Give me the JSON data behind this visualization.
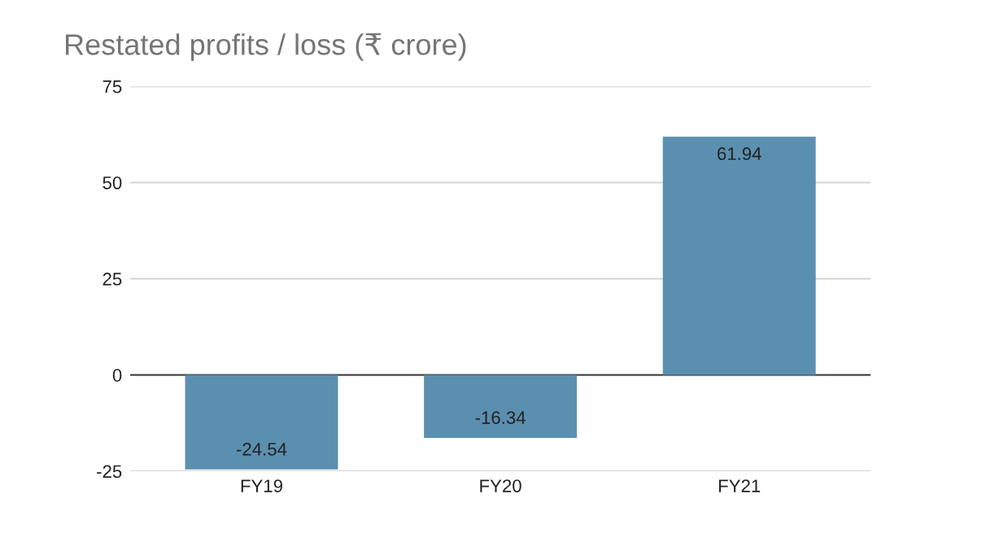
{
  "chart_data": {
    "type": "bar",
    "title": "Restated profits / loss (₹ crore)",
    "categories": [
      "FY19",
      "FY20",
      "FY21"
    ],
    "values": [
      -24.54,
      -16.34,
      61.94
    ],
    "color": "#5b8fb0",
    "ylim": [
      -25,
      75
    ],
    "yticks": [
      -25,
      0,
      25,
      50,
      75
    ],
    "grid": "y",
    "data_labels": true
  }
}
